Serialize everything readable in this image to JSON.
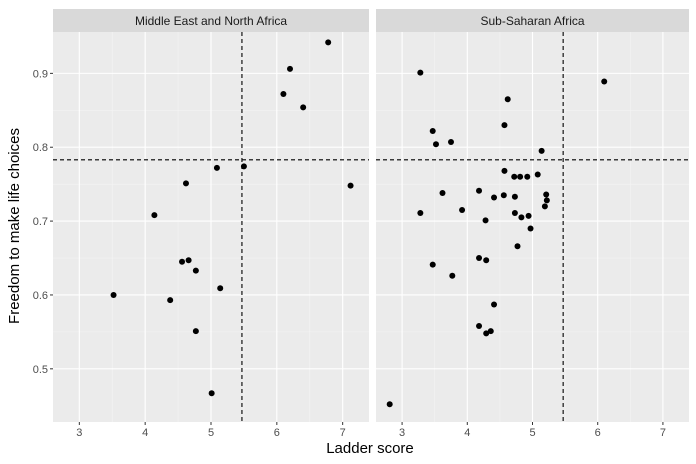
{
  "chart_data": {
    "type": "scatter",
    "xlabel": "Ladder score",
    "ylabel": "Freedom to make life choices",
    "xlim": [
      2.6,
      7.4
    ],
    "ylim": [
      0.428,
      0.956
    ],
    "x_ticks": [
      3,
      4,
      5,
      6,
      7
    ],
    "y_ticks": [
      0.5,
      0.6,
      0.7,
      0.8,
      0.9
    ],
    "grid": true,
    "reference_lines": {
      "x": 5.47,
      "y": 0.783
    },
    "colors": {
      "panel_background": "#ebebeb",
      "strip_background": "#d9d9d9",
      "grid_major": "#ffffff",
      "points": "#000000",
      "reference_line": "#000000"
    },
    "panels": [
      {
        "title": "Middle East and North Africa",
        "points": [
          {
            "x": 3.52,
            "y": 0.6
          },
          {
            "x": 4.14,
            "y": 0.708
          },
          {
            "x": 4.38,
            "y": 0.593
          },
          {
            "x": 4.56,
            "y": 0.645
          },
          {
            "x": 4.62,
            "y": 0.751
          },
          {
            "x": 4.66,
            "y": 0.647
          },
          {
            "x": 4.77,
            "y": 0.633
          },
          {
            "x": 4.77,
            "y": 0.551
          },
          {
            "x": 5.01,
            "y": 0.467
          },
          {
            "x": 5.09,
            "y": 0.772
          },
          {
            "x": 5.14,
            "y": 0.609
          },
          {
            "x": 5.5,
            "y": 0.774
          },
          {
            "x": 6.1,
            "y": 0.872
          },
          {
            "x": 6.2,
            "y": 0.906
          },
          {
            "x": 6.4,
            "y": 0.854
          },
          {
            "x": 6.78,
            "y": 0.942
          },
          {
            "x": 7.12,
            "y": 0.748
          }
        ]
      },
      {
        "title": "Sub-Saharan Africa",
        "points": [
          {
            "x": 2.81,
            "y": 0.452
          },
          {
            "x": 3.28,
            "y": 0.901
          },
          {
            "x": 3.28,
            "y": 0.711
          },
          {
            "x": 3.47,
            "y": 0.822
          },
          {
            "x": 3.47,
            "y": 0.641
          },
          {
            "x": 3.52,
            "y": 0.804
          },
          {
            "x": 3.62,
            "y": 0.738
          },
          {
            "x": 3.75,
            "y": 0.807
          },
          {
            "x": 3.77,
            "y": 0.626
          },
          {
            "x": 3.92,
            "y": 0.715
          },
          {
            "x": 4.18,
            "y": 0.741
          },
          {
            "x": 4.18,
            "y": 0.65
          },
          {
            "x": 4.18,
            "y": 0.558
          },
          {
            "x": 4.28,
            "y": 0.701
          },
          {
            "x": 4.29,
            "y": 0.647
          },
          {
            "x": 4.29,
            "y": 0.548
          },
          {
            "x": 4.36,
            "y": 0.551
          },
          {
            "x": 4.41,
            "y": 0.732
          },
          {
            "x": 4.41,
            "y": 0.587
          },
          {
            "x": 4.56,
            "y": 0.735
          },
          {
            "x": 4.57,
            "y": 0.768
          },
          {
            "x": 4.57,
            "y": 0.83
          },
          {
            "x": 4.62,
            "y": 0.865
          },
          {
            "x": 4.72,
            "y": 0.76
          },
          {
            "x": 4.73,
            "y": 0.733
          },
          {
            "x": 4.73,
            "y": 0.711
          },
          {
            "x": 4.77,
            "y": 0.666
          },
          {
            "x": 4.81,
            "y": 0.76
          },
          {
            "x": 4.83,
            "y": 0.705
          },
          {
            "x": 4.92,
            "y": 0.76
          },
          {
            "x": 4.94,
            "y": 0.707
          },
          {
            "x": 4.97,
            "y": 0.69
          },
          {
            "x": 5.08,
            "y": 0.763
          },
          {
            "x": 5.14,
            "y": 0.795
          },
          {
            "x": 5.19,
            "y": 0.72
          },
          {
            "x": 5.21,
            "y": 0.736
          },
          {
            "x": 5.22,
            "y": 0.728
          },
          {
            "x": 6.1,
            "y": 0.889
          }
        ]
      }
    ]
  }
}
